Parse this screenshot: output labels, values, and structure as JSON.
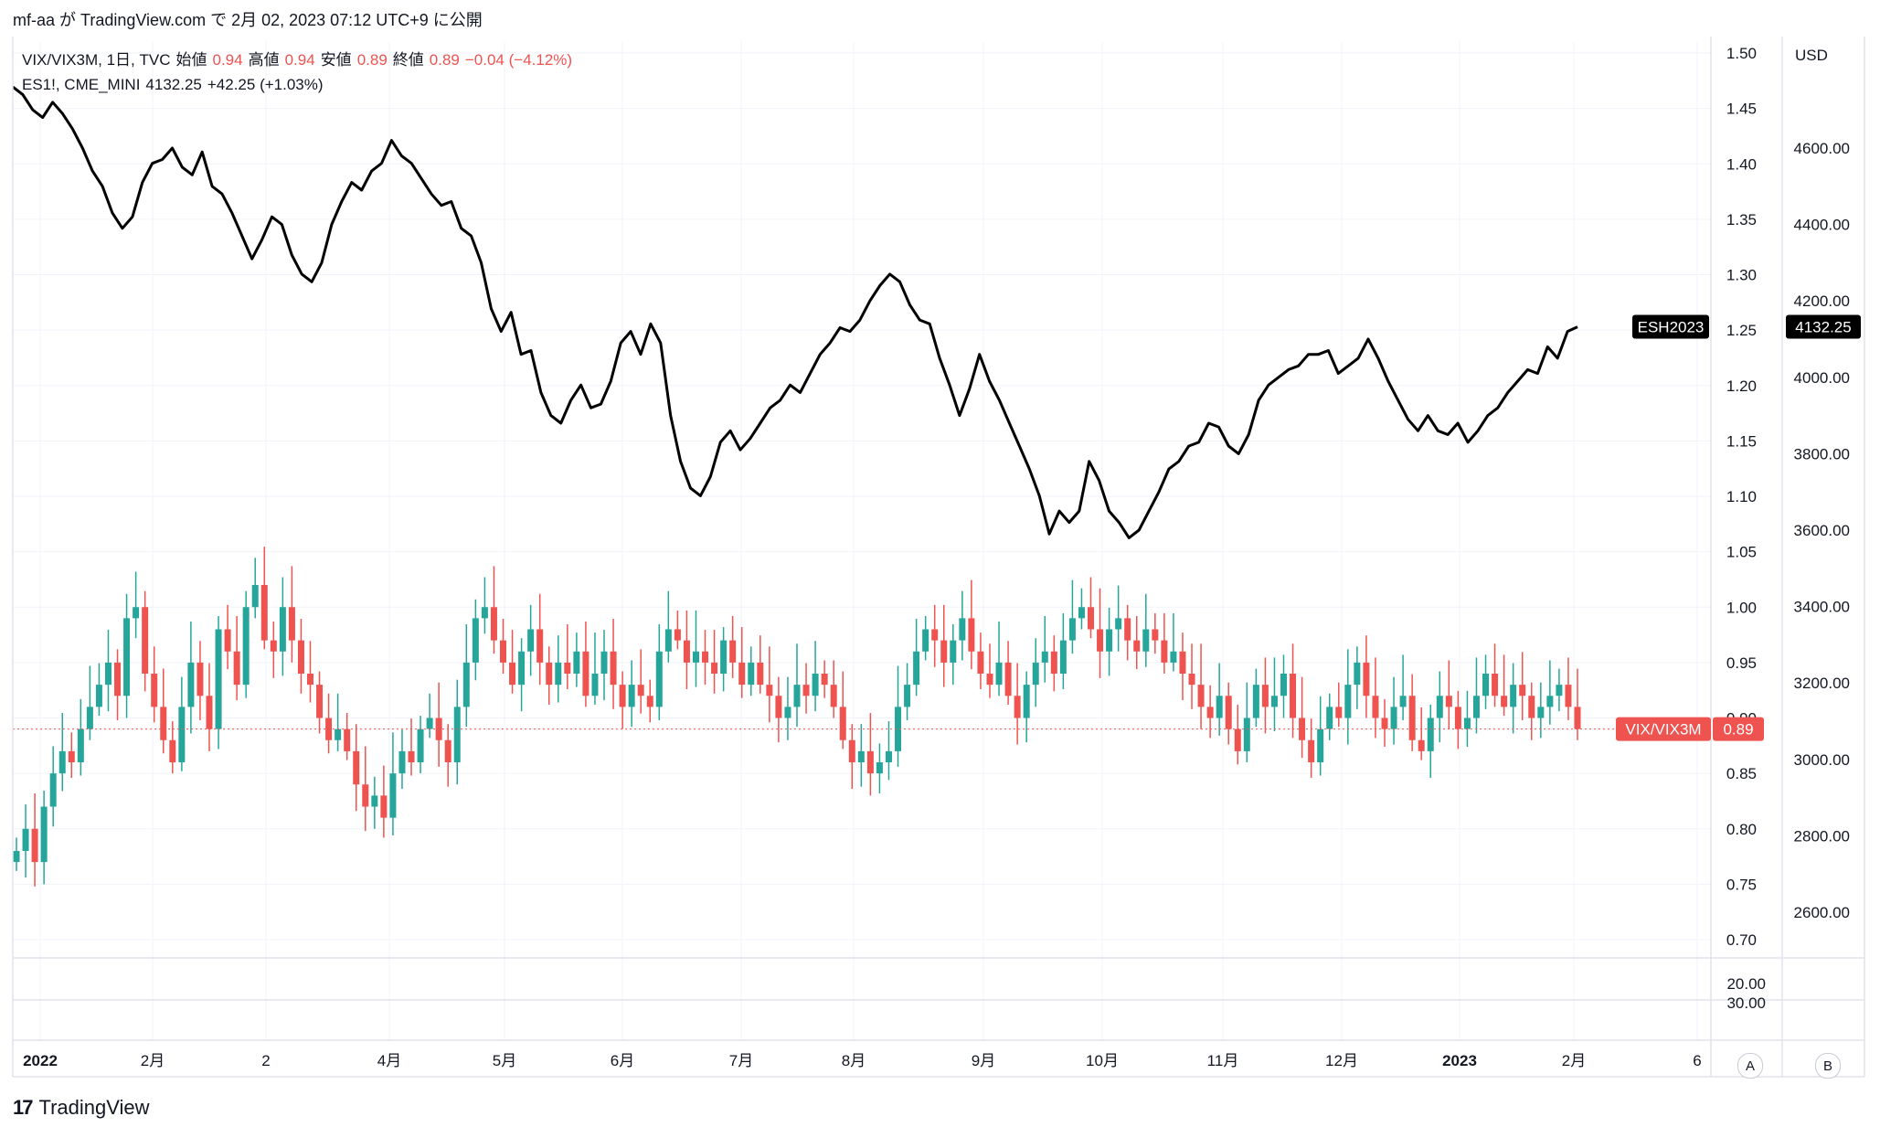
{
  "header": {
    "text": "mf-aa が TradingView.com で 2月 02, 2023 07:12 UTC+9 に公開"
  },
  "legend": {
    "main_symbol": "VIX/VIX3M, 1日, TVC",
    "open_label": "始値",
    "open_value": "0.94",
    "high_label": "高値",
    "high_value": "0.94",
    "low_label": "安値",
    "low_value": "0.89",
    "close_label": "終値",
    "close_value": "0.89",
    "change": "−0.04 (−4.12%)",
    "overlay_symbol": "ES1!, CME_MINI",
    "overlay_value": "4132.25",
    "overlay_change": "+42.25 (+1.03%)"
  },
  "footer": {
    "brand": "TradingView"
  },
  "scale_buttons": {
    "a": "A",
    "b": "B"
  },
  "colors": {
    "up": "#26a69a",
    "down": "#ef5350",
    "line": "#000000",
    "grid": "#f0f3fa"
  },
  "chart_data": {
    "type": "candlestick+line",
    "x_labels": [
      "2022",
      "2月",
      "2",
      "4月",
      "5月",
      "6月",
      "7月",
      "8月",
      "9月",
      "10月",
      "11月",
      "12月",
      "2023",
      "2月",
      "6"
    ],
    "left_axis": {
      "ticks": [
        "1.50",
        "1.45",
        "1.40",
        "1.35",
        "1.30",
        "1.25",
        "1.20",
        "1.15",
        "1.10",
        "1.05",
        "1.00",
        "0.95",
        "0.90",
        "0.85",
        "0.80",
        "0.75",
        "0.70"
      ],
      "range": [
        0.68,
        1.51
      ]
    },
    "right_axis": {
      "unit": "USD",
      "ticks": [
        "4600.00",
        "4400.00",
        "4200.00",
        "4000.00",
        "3800.00",
        "3600.00",
        "3400.00",
        "3200.00",
        "3000.00",
        "2800.00",
        "2600.00"
      ]
    },
    "lower_pane_ticks": [
      "20.00",
      "30.00"
    ],
    "series": [
      {
        "name": "VIX/VIX3M",
        "style": "candles",
        "last": "0.89",
        "close": [
          0.78,
          0.8,
          0.77,
          0.82,
          0.85,
          0.87,
          0.86,
          0.89,
          0.91,
          0.93,
          0.95,
          0.92,
          0.99,
          1.0,
          0.94,
          0.91,
          0.88,
          0.86,
          0.91,
          0.95,
          0.92,
          0.89,
          0.98,
          0.96,
          0.93,
          1.0,
          1.02,
          0.97,
          0.96,
          1.0,
          0.97,
          0.94,
          0.93,
          0.9,
          0.88,
          0.89,
          0.87,
          0.84,
          0.82,
          0.83,
          0.81,
          0.85,
          0.87,
          0.86,
          0.89,
          0.9,
          0.88,
          0.86,
          0.91,
          0.95,
          0.99,
          1.0,
          0.97,
          0.95,
          0.93,
          0.96,
          0.98,
          0.95,
          0.93,
          0.95,
          0.94,
          0.96,
          0.92,
          0.94,
          0.96,
          0.93,
          0.91,
          0.93,
          0.92,
          0.91,
          0.96,
          0.98,
          0.97,
          0.95,
          0.96,
          0.95,
          0.94,
          0.97,
          0.95,
          0.93,
          0.95,
          0.93,
          0.92,
          0.9,
          0.91,
          0.93,
          0.92,
          0.94,
          0.93,
          0.91,
          0.88,
          0.86,
          0.87,
          0.85,
          0.86,
          0.87,
          0.91,
          0.93,
          0.96,
          0.98,
          0.97,
          0.95,
          0.97,
          0.99,
          0.96,
          0.94,
          0.93,
          0.95,
          0.92,
          0.9,
          0.93,
          0.95,
          0.96,
          0.94,
          0.97,
          0.99,
          1.0,
          0.98,
          0.96,
          0.98,
          0.99,
          0.97,
          0.96,
          0.98,
          0.97,
          0.95,
          0.96,
          0.94,
          0.93,
          0.91,
          0.9,
          0.92,
          0.89,
          0.87,
          0.9,
          0.93,
          0.91,
          0.92,
          0.94,
          0.9,
          0.88,
          0.86,
          0.89,
          0.91,
          0.9,
          0.93,
          0.95,
          0.92,
          0.9,
          0.89,
          0.91,
          0.92,
          0.88,
          0.87,
          0.9,
          0.92,
          0.91,
          0.89,
          0.9,
          0.92,
          0.94,
          0.92,
          0.91,
          0.93,
          0.92,
          0.9,
          0.91,
          0.92,
          0.93,
          0.91,
          0.89
        ],
        "ohlc_note": "daily candles, Jan 2022 – Feb 2023; values approximate"
      },
      {
        "name": "ESH2023",
        "style": "line",
        "last": "4132.25",
        "values": [
          4760,
          4740,
          4700,
          4680,
          4720,
          4690,
          4650,
          4600,
          4540,
          4500,
          4430,
          4390,
          4420,
          4510,
          4560,
          4570,
          4600,
          4550,
          4530,
          4590,
          4500,
          4480,
          4430,
          4370,
          4310,
          4360,
          4420,
          4400,
          4320,
          4270,
          4250,
          4300,
          4400,
          4460,
          4510,
          4490,
          4540,
          4560,
          4620,
          4580,
          4560,
          4520,
          4480,
          4450,
          4460,
          4390,
          4370,
          4300,
          4180,
          4120,
          4170,
          4060,
          4070,
          3960,
          3900,
          3880,
          3940,
          3980,
          3920,
          3930,
          3990,
          4090,
          4120,
          4060,
          4140,
          4090,
          3900,
          3780,
          3710,
          3690,
          3740,
          3830,
          3860,
          3810,
          3840,
          3880,
          3920,
          3940,
          3980,
          3960,
          4010,
          4060,
          4090,
          4130,
          4120,
          4150,
          4200,
          4240,
          4270,
          4250,
          4190,
          4150,
          4140,
          4050,
          3980,
          3900,
          3970,
          4060,
          3990,
          3940,
          3880,
          3820,
          3760,
          3690,
          3590,
          3650,
          3620,
          3650,
          3780,
          3730,
          3650,
          3620,
          3580,
          3600,
          3650,
          3700,
          3760,
          3780,
          3820,
          3830,
          3880,
          3870,
          3820,
          3800,
          3850,
          3940,
          3980,
          4000,
          4020,
          4030,
          4060,
          4060,
          4070,
          4010,
          4030,
          4050,
          4100,
          4050,
          3990,
          3940,
          3890,
          3860,
          3900,
          3860,
          3850,
          3880,
          3830,
          3860,
          3900,
          3920,
          3960,
          3990,
          4020,
          4010,
          4080,
          4050,
          4120,
          4132
        ]
      }
    ],
    "price_tags": [
      {
        "label": "ESH2023",
        "value": "4132.25"
      },
      {
        "label": "VIX/VIX3M",
        "value": "0.89"
      }
    ]
  }
}
